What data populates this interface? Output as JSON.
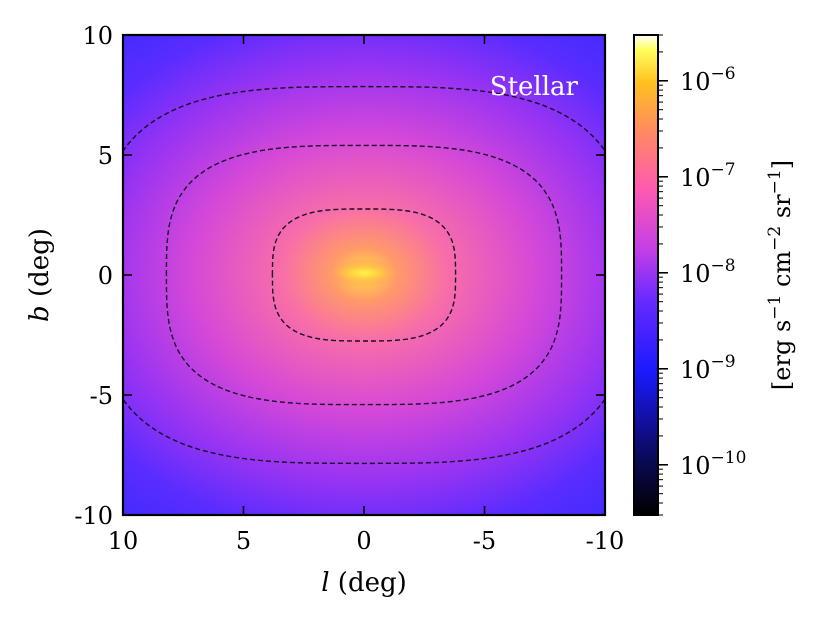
{
  "chart_data": {
    "type": "heatmap",
    "xlabel": "l (deg)",
    "xlabel_var": "l",
    "xlabel_unit": " (deg)",
    "ylabel": "b (deg)",
    "ylabel_var": "b",
    "ylabel_unit": " (deg)",
    "xlim": [
      10,
      -10
    ],
    "ylim": [
      -10,
      10
    ],
    "x_ticks": [
      10,
      5,
      0,
      -5,
      -10
    ],
    "x_tick_labels": [
      "10",
      "5",
      "0",
      "-5",
      "-10"
    ],
    "y_ticks": [
      -10,
      -5,
      0,
      5,
      10
    ],
    "y_tick_labels": [
      "-10",
      "-5",
      "0",
      "5",
      "10"
    ],
    "annotation": "Stellar",
    "colorscale": "plasma-like (black-blue-magenta-pink-orange-yellow-white)",
    "colorbar": {
      "scale": "log",
      "range": [
        3e-11,
        3e-06
      ],
      "ticks": [
        1e-10,
        1e-09,
        1e-08,
        1e-07,
        1e-06
      ],
      "tick_bases": [
        "10",
        "10",
        "10",
        "10",
        "10"
      ],
      "tick_exponents": [
        "−10",
        "−9",
        "−8",
        "−7",
        "−6"
      ],
      "label": "[erg s−1 cm−2 sr−1]",
      "label_parts": [
        "[erg s",
        "−1",
        " cm",
        "−2",
        " sr",
        "−1",
        "]"
      ]
    },
    "peak": {
      "l": 0,
      "b": 0,
      "value": 2e-06
    },
    "contours": [
      {
        "level": "inner",
        "half_width_l": 3.8,
        "half_height_b": 2.75,
        "style": "dashed"
      },
      {
        "level": "middle",
        "half_width_l": 8.2,
        "half_height_b": 5.4,
        "style": "dashed"
      },
      {
        "level": "outer",
        "half_width_l": 11.0,
        "half_height_b": 7.85,
        "style": "dashed"
      }
    ],
    "grid": false
  }
}
